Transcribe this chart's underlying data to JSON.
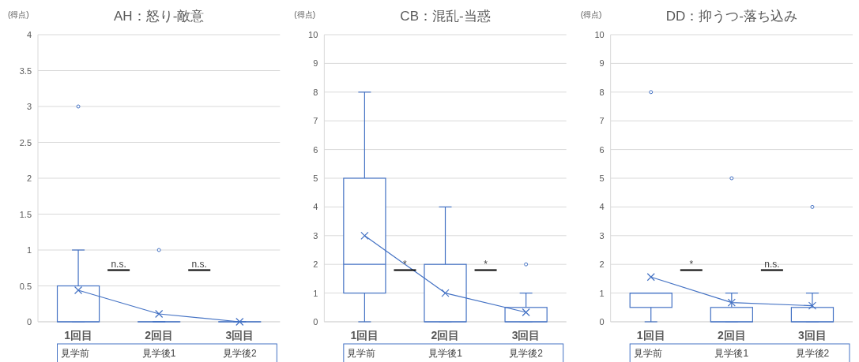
{
  "chart_data": [
    {
      "type": "box",
      "title": "AH：怒り-敵意",
      "ylabel": "(得点)",
      "categories": [
        "1回目",
        "2回目",
        "3回目"
      ],
      "ylim": [
        0,
        4
      ],
      "yticks": [
        0,
        0.5,
        1,
        1.5,
        2,
        2.5,
        3,
        3.5,
        4
      ],
      "grid": "y",
      "color": "#4472c4",
      "boxes": [
        {
          "low": 0,
          "q1": 0,
          "median": 0,
          "q3": 0.5,
          "high": 1,
          "mean": 0.44,
          "outliers": [
            3
          ]
        },
        {
          "low": 0,
          "q1": 0,
          "median": 0,
          "q3": 0,
          "high": 0,
          "mean": 0.11,
          "outliers": [
            1
          ]
        },
        {
          "low": 0,
          "q1": 0,
          "median": 0,
          "q3": 0,
          "high": 0,
          "mean": 0
        }
      ],
      "series": [
        {
          "type": "line",
          "color": "#4472c4",
          "values": [
            0.44,
            0.11,
            0
          ]
        }
      ],
      "annotations": [
        "n.s.",
        "n.s.",
        "見学前",
        "見学後1",
        "見学後2"
      ]
    },
    {
      "type": "box",
      "title": "CB：混乱-当惑",
      "ylabel": "(得点)",
      "categories": [
        "1回目",
        "2回目",
        "3回目"
      ],
      "ylim": [
        0,
        10
      ],
      "yticks": [
        0,
        1,
        2,
        3,
        4,
        5,
        6,
        7,
        8,
        9,
        10
      ],
      "grid": "y",
      "color": "#4472c4",
      "boxes": [
        {
          "low": 0,
          "q1": 1,
          "median": 2,
          "q3": 5,
          "high": 8,
          "mean": 3
        },
        {
          "low": 0,
          "q1": 0,
          "median": 0,
          "q3": 2,
          "high": 4,
          "mean": 1
        },
        {
          "low": 0,
          "q1": 0,
          "median": 0,
          "q3": 0.5,
          "high": 1,
          "mean": 0.33,
          "outliers": [
            2
          ]
        }
      ],
      "series": [
        {
          "type": "line",
          "color": "#4472c4",
          "values": [
            3,
            1,
            0.33
          ]
        }
      ],
      "annotations": [
        "*",
        "*",
        "見学前",
        "見学後1",
        "見学後2"
      ]
    },
    {
      "type": "box",
      "title": "DD：抑うつ-落ち込み",
      "ylabel": "(得点)",
      "categories": [
        "1回目",
        "2回目",
        "3回目"
      ],
      "ylim": [
        0,
        10
      ],
      "yticks": [
        0,
        1,
        2,
        3,
        4,
        5,
        6,
        7,
        8,
        9,
        10
      ],
      "grid": "y",
      "color": "#4472c4",
      "boxes": [
        {
          "low": 0,
          "q1": 0.5,
          "median": 1,
          "q3": 1,
          "high": 1,
          "mean": 1.56,
          "outliers": [
            8
          ]
        },
        {
          "low": 0,
          "q1": 0,
          "median": 0,
          "q3": 0.5,
          "high": 1,
          "mean": 0.67,
          "outliers": [
            5
          ]
        },
        {
          "low": 0,
          "q1": 0,
          "median": 0,
          "q3": 0.5,
          "high": 1,
          "mean": 0.56,
          "outliers": [
            4
          ]
        }
      ],
      "series": [
        {
          "type": "line",
          "color": "#4472c4",
          "values": [
            1.56,
            0.67,
            0.56
          ]
        }
      ],
      "annotations": [
        "*",
        "n.s.",
        "見学前",
        "見学後1",
        "見学後2"
      ]
    }
  ]
}
